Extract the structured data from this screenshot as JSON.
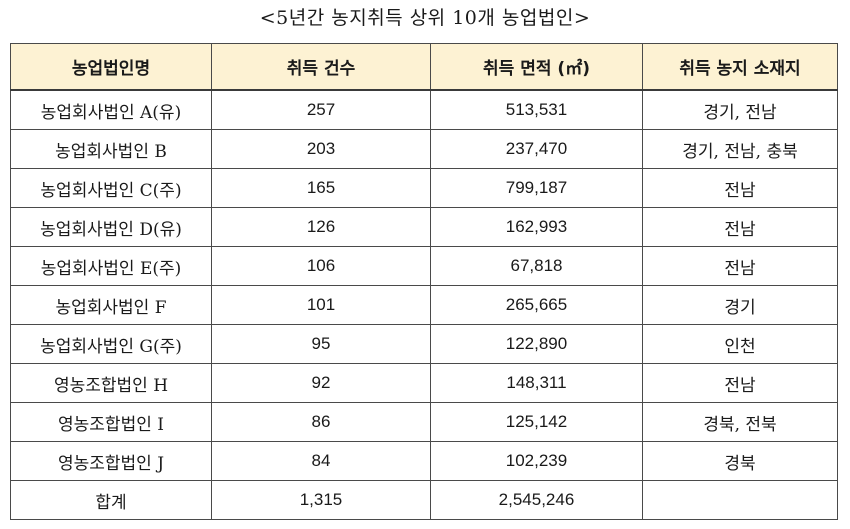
{
  "caption": "<5년간 농지취득 상위 10개 농업법인>",
  "table": {
    "headers": [
      "농업법인명",
      "취득 건수",
      "취득 면적 (㎡)",
      "취득 농지 소재지"
    ],
    "rows": [
      [
        "농업회사법인 A(유)",
        "257",
        "513,531",
        "경기, 전남"
      ],
      [
        "농업회사법인 B",
        "203",
        "237,470",
        "경기, 전남, 충북"
      ],
      [
        "농업회사법인 C(주)",
        "165",
        "799,187",
        "전남"
      ],
      [
        "농업회사법인 D(유)",
        "126",
        "162,993",
        "전남"
      ],
      [
        "농업회사법인 E(주)",
        "106",
        "67,818",
        "전남"
      ],
      [
        "농업회사법인 F",
        "101",
        "265,665",
        "경기"
      ],
      [
        "농업회사법인 G(주)",
        "95",
        "122,890",
        "인천"
      ],
      [
        "영농조합법인 H",
        "92",
        "148,311",
        "전남"
      ],
      [
        "영농조합법인 I",
        "86",
        "125,142",
        "경북, 전북"
      ],
      [
        "영농조합법인 J",
        "84",
        "102,239",
        "경북"
      ],
      [
        "합계",
        "1,315",
        "2,545,246",
        ""
      ]
    ]
  }
}
